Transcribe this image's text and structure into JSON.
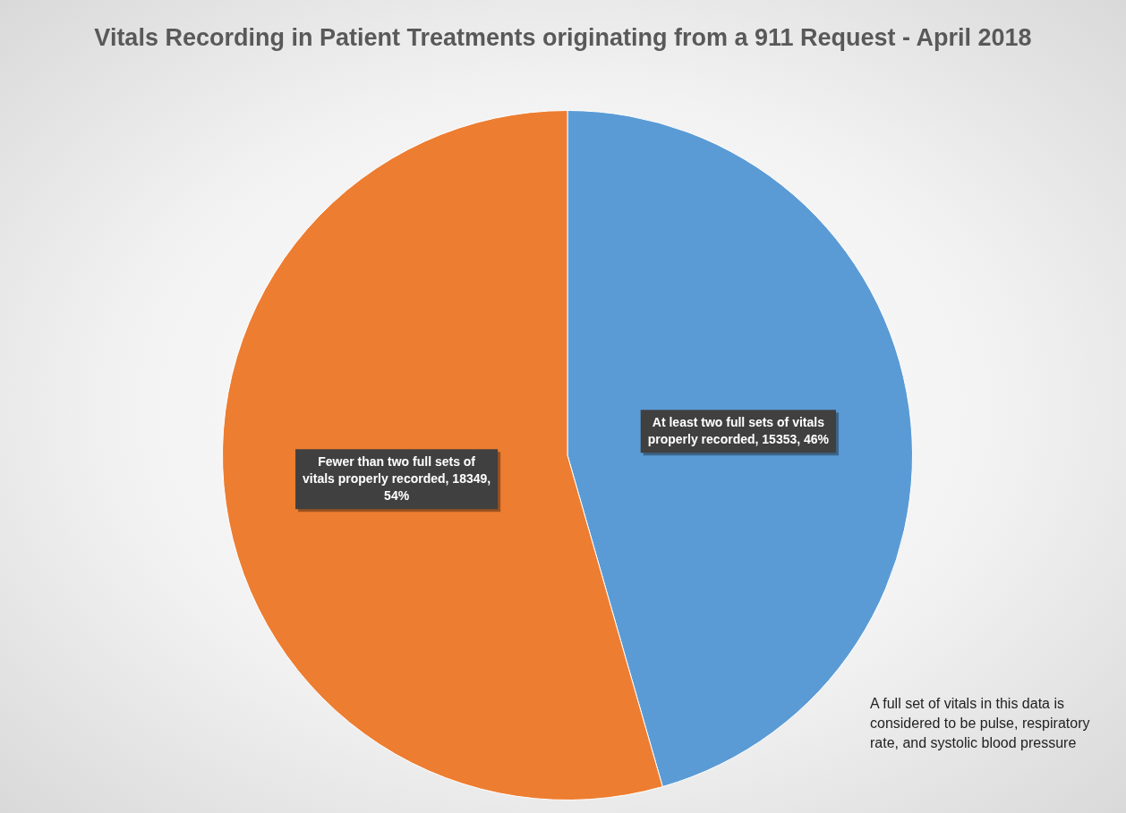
{
  "chart_data": {
    "type": "pie",
    "title": "Vitals Recording in Patient Treatments originating from a 911 Request - April 2018",
    "categories": [
      "At least two full sets of vitals properly recorded",
      "Fewer than two full sets of vitals properly recorded"
    ],
    "values": [
      15353,
      18349
    ],
    "colors": [
      "#5b9bd5",
      "#ed7d31"
    ],
    "value_labels": [
      "15353, 46%",
      "18349, 54%"
    ],
    "annotations": [
      "A full set of vitals in this data is considered to be pulse, respiratory rate, and systolic blood pressure"
    ]
  }
}
